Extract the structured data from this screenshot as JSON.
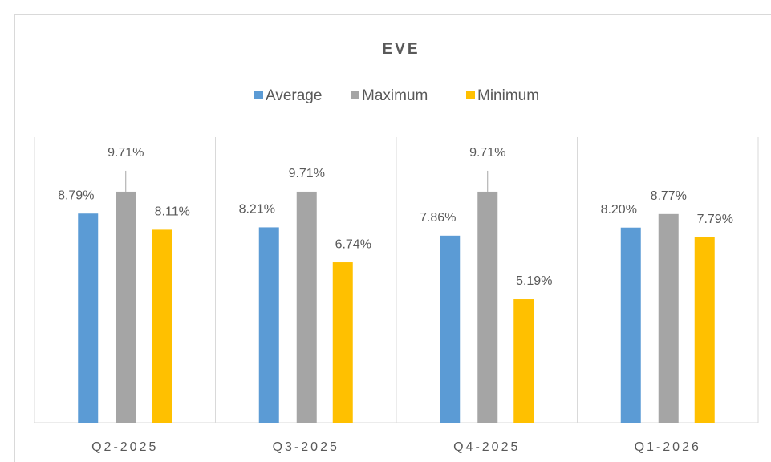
{
  "chart_data": {
    "type": "bar",
    "title": "EVE",
    "categories": [
      "Q2-2025",
      "Q3-2025",
      "Q4-2025",
      "Q1-2026"
    ],
    "series": [
      {
        "name": "Average",
        "color": "#5b9bd5",
        "values": [
          8.79,
          8.21,
          7.86,
          8.2
        ],
        "value_labels": [
          "8.79%",
          "8.21%",
          "7.86%",
          "8.20%"
        ]
      },
      {
        "name": "Maximum",
        "color": "#a5a5a5",
        "values": [
          9.71,
          9.71,
          9.71,
          8.77
        ],
        "value_labels": [
          "9.71%",
          "9.71%",
          "9.71%",
          "8.77%"
        ]
      },
      {
        "name": "Minimum",
        "color": "#ffc000",
        "values": [
          8.11,
          6.74,
          5.19,
          7.79
        ],
        "value_labels": [
          "8.11%",
          "6.74%",
          "5.19%",
          "7.79%"
        ]
      }
    ],
    "ylim": [
      0,
      12
    ],
    "legend": "top"
  }
}
